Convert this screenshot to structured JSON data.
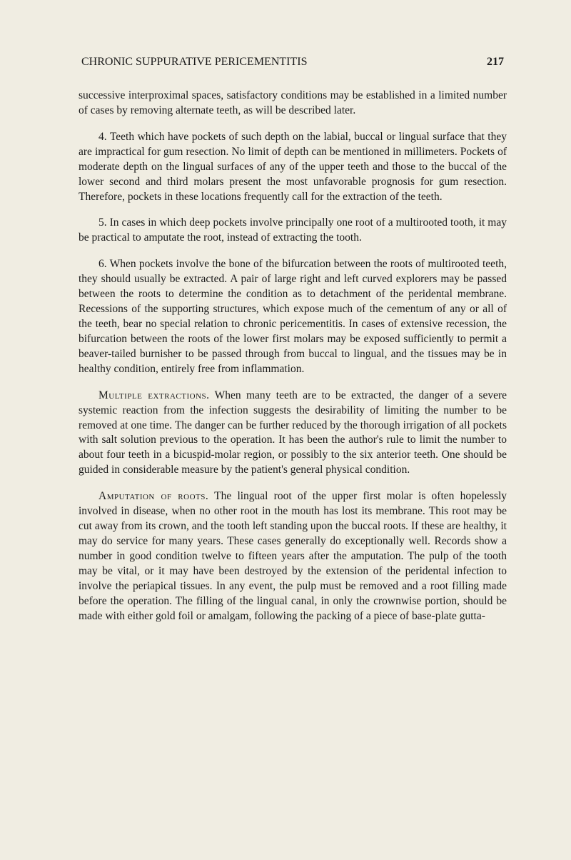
{
  "header": {
    "title": "CHRONIC SUPPURATIVE PERICEMENTITIS",
    "pageNumber": "217"
  },
  "paragraphs": {
    "p1": "successive interproximal spaces, satisfactory conditions may be established in a limited number of cases by removing alternate teeth, as will be described later.",
    "p2": "4. Teeth which have pockets of such depth on the labial, buccal or lingual surface that they are impractical for gum resection. No limit of depth can be mentioned in millimeters. Pockets of moderate depth on the lingual surfaces of any of the upper teeth and those to the buccal of the lower second and third molars present the most unfavorable prognosis for gum resection. Therefore, pockets in these locations frequently call for the extraction of the teeth.",
    "p3": "5. In cases in which deep pockets involve principally one root of a multirooted tooth, it may be practical to amputate the root, instead of extracting the tooth.",
    "p4": "6. When pockets involve the bone of the bifurcation between the roots of multirooted teeth, they should usually be extracted. A pair of large right and left curved explorers may be passed between the roots to determine the condition as to detachment of the peridental membrane. Recessions of the supporting structures, which expose much of the cementum of any or all of the teeth, bear no special relation to chronic pericementitis. In cases of extensive recession, the bifurcation between the roots of the lower first molars may be exposed sufficiently to permit a beaver-tailed burnisher to be passed through from buccal to lingual, and the tissues may be in healthy condition, entirely free from inflammation.",
    "p5_heading": "Multiple extractions.",
    "p5_body": " When many teeth are to be extracted, the danger of a severe systemic reaction from the infection suggests the desirability of limiting the number to be removed at one time. The danger can be further reduced by the thorough irrigation of all pockets with salt solution previous to the operation. It has been the author's rule to limit the number to about four teeth in a bicuspid-molar region, or possibly to the six anterior teeth. One should be guided in considerable measure by the patient's general physical condition.",
    "p6_heading": "Amputation of roots.",
    "p6_body": " The lingual root of the upper first molar is often hopelessly involved in disease, when no other root in the mouth has lost its membrane. This root may be cut away from its crown, and the tooth left standing upon the buccal roots. If these are healthy, it may do service for many years. These cases generally do exceptionally well. Records show a number in good condition twelve to fifteen years after the amputation. The pulp of the tooth may be vital, or it may have been destroyed by the extension of the peridental infection to involve the periapical tissues. In any event, the pulp must be removed and a root filling made before the operation. The filling of the lingual canal, in only the crownwise portion, should be made with either gold foil or amalgam, following the packing of a piece of base-plate gutta-"
  }
}
